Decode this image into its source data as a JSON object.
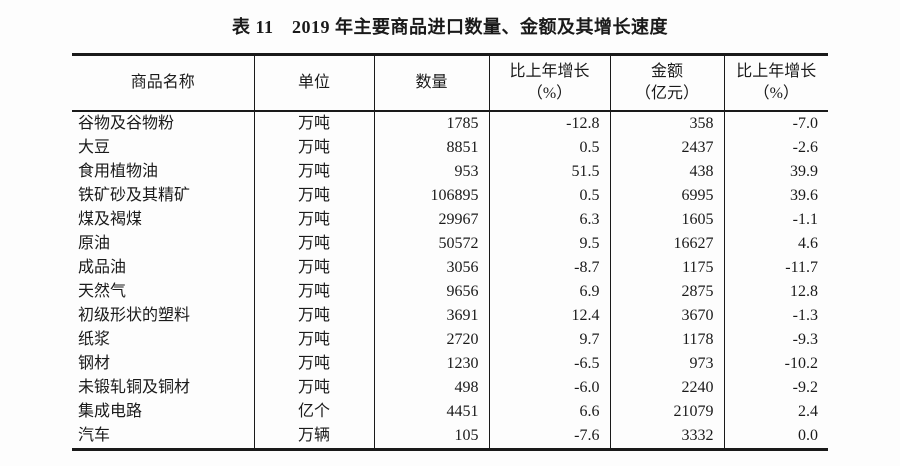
{
  "title": "表 11　2019 年主要商品进口数量、金额及其增长速度",
  "table": {
    "headers": {
      "name": "商品名称",
      "unit": "单位",
      "quantity": "数量",
      "quantity_growth": "比上年增长\n（%）",
      "amount": "金额\n（亿元）",
      "amount_growth": "比上年增长\n（%）"
    },
    "rows": [
      {
        "name": "谷物及谷物粉",
        "unit": "万吨",
        "quantity": "1785",
        "quantity_growth": "-12.8",
        "amount": "358",
        "amount_growth": "-7.0"
      },
      {
        "name": "大豆",
        "unit": "万吨",
        "quantity": "8851",
        "quantity_growth": "0.5",
        "amount": "2437",
        "amount_growth": "-2.6"
      },
      {
        "name": "食用植物油",
        "unit": "万吨",
        "quantity": "953",
        "quantity_growth": "51.5",
        "amount": "438",
        "amount_growth": "39.9"
      },
      {
        "name": "铁矿砂及其精矿",
        "unit": "万吨",
        "quantity": "106895",
        "quantity_growth": "0.5",
        "amount": "6995",
        "amount_growth": "39.6"
      },
      {
        "name": "煤及褐煤",
        "unit": "万吨",
        "quantity": "29967",
        "quantity_growth": "6.3",
        "amount": "1605",
        "amount_growth": "-1.1"
      },
      {
        "name": "原油",
        "unit": "万吨",
        "quantity": "50572",
        "quantity_growth": "9.5",
        "amount": "16627",
        "amount_growth": "4.6"
      },
      {
        "name": "成品油",
        "unit": "万吨",
        "quantity": "3056",
        "quantity_growth": "-8.7",
        "amount": "1175",
        "amount_growth": "-11.7"
      },
      {
        "name": "天然气",
        "unit": "万吨",
        "quantity": "9656",
        "quantity_growth": "6.9",
        "amount": "2875",
        "amount_growth": "12.8"
      },
      {
        "name": "初级形状的塑料",
        "unit": "万吨",
        "quantity": "3691",
        "quantity_growth": "12.4",
        "amount": "3670",
        "amount_growth": "-1.3"
      },
      {
        "name": "纸浆",
        "unit": "万吨",
        "quantity": "2720",
        "quantity_growth": "9.7",
        "amount": "1178",
        "amount_growth": "-9.3"
      },
      {
        "name": "钢材",
        "unit": "万吨",
        "quantity": "1230",
        "quantity_growth": "-6.5",
        "amount": "973",
        "amount_growth": "-10.2"
      },
      {
        "name": "未锻轧铜及铜材",
        "unit": "万吨",
        "quantity": "498",
        "quantity_growth": "-6.0",
        "amount": "2240",
        "amount_growth": "-9.2"
      },
      {
        "name": "集成电路",
        "unit": "亿个",
        "quantity": "4451",
        "quantity_growth": "6.6",
        "amount": "21079",
        "amount_growth": "2.4"
      },
      {
        "name": "汽车",
        "unit": "万辆",
        "quantity": "105",
        "quantity_growth": "-7.6",
        "amount": "3332",
        "amount_growth": "0.0"
      }
    ]
  }
}
